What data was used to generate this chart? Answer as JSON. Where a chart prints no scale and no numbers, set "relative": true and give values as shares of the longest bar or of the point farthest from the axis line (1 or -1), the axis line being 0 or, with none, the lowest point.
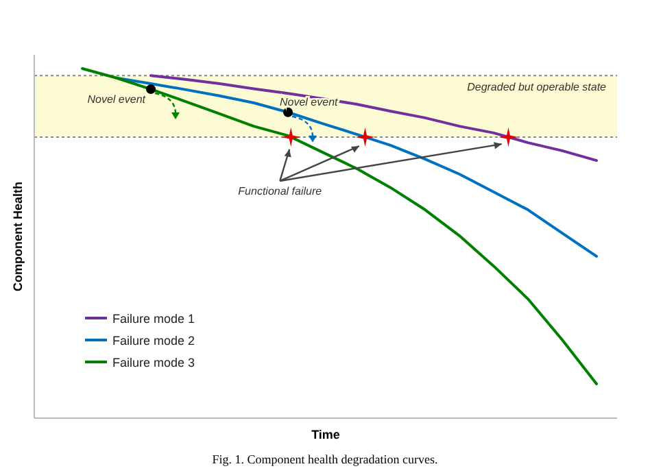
{
  "chart_data": {
    "type": "line",
    "relative": true,
    "xlabel": "Time",
    "ylabel": "Component Health",
    "categories": [
      null,
      null,
      null,
      null,
      null,
      null,
      null,
      null,
      null,
      null,
      null,
      null,
      null,
      null,
      null,
      null
    ],
    "series": [
      {
        "name": "Failure mode 1",
        "color": "#7030a0",
        "values": [
          null,
          null,
          0.98,
          0.969,
          0.957,
          0.942,
          0.929,
          0.914,
          0.898,
          0.878,
          0.859,
          0.835,
          0.816,
          0.788,
          0.765,
          0.737
        ]
      },
      {
        "name": "Failure mode 2",
        "color": "#0070c0",
        "values": [
          null,
          0.973,
          0.957,
          0.94,
          0.922,
          0.902,
          0.875,
          0.843,
          0.812,
          0.78,
          0.741,
          0.698,
          0.647,
          0.596,
          0.529,
          0.463
        ]
      },
      {
        "name": "Failure mode 3",
        "color": "#008000",
        "values": [
          1.0,
          0.973,
          0.941,
          0.906,
          0.871,
          0.835,
          0.808,
          0.761,
          0.714,
          0.659,
          0.596,
          0.522,
          0.435,
          0.341,
          0.224,
          0.098
        ]
      }
    ],
    "bands": [
      {
        "axis": "y",
        "from": 0.804,
        "to": 0.98,
        "label": "Degraded but operable state",
        "color": "#fdfbd3"
      }
    ],
    "ref_lines": [
      {
        "axis": "y",
        "value": 0.98,
        "line_style": "dotted",
        "color": "#888888"
      },
      {
        "axis": "y",
        "value": 0.804,
        "line_style": "dotted",
        "color": "#888888"
      }
    ],
    "annotations": [
      "Novel event",
      {
        "text": "Novel event",
        "y": 0.875
      },
      "Functional failure",
      "Fig. 1. Component health degradation curves."
    ],
    "legend": "bottom left",
    "marker": "none",
    "line_style": "solid"
  }
}
